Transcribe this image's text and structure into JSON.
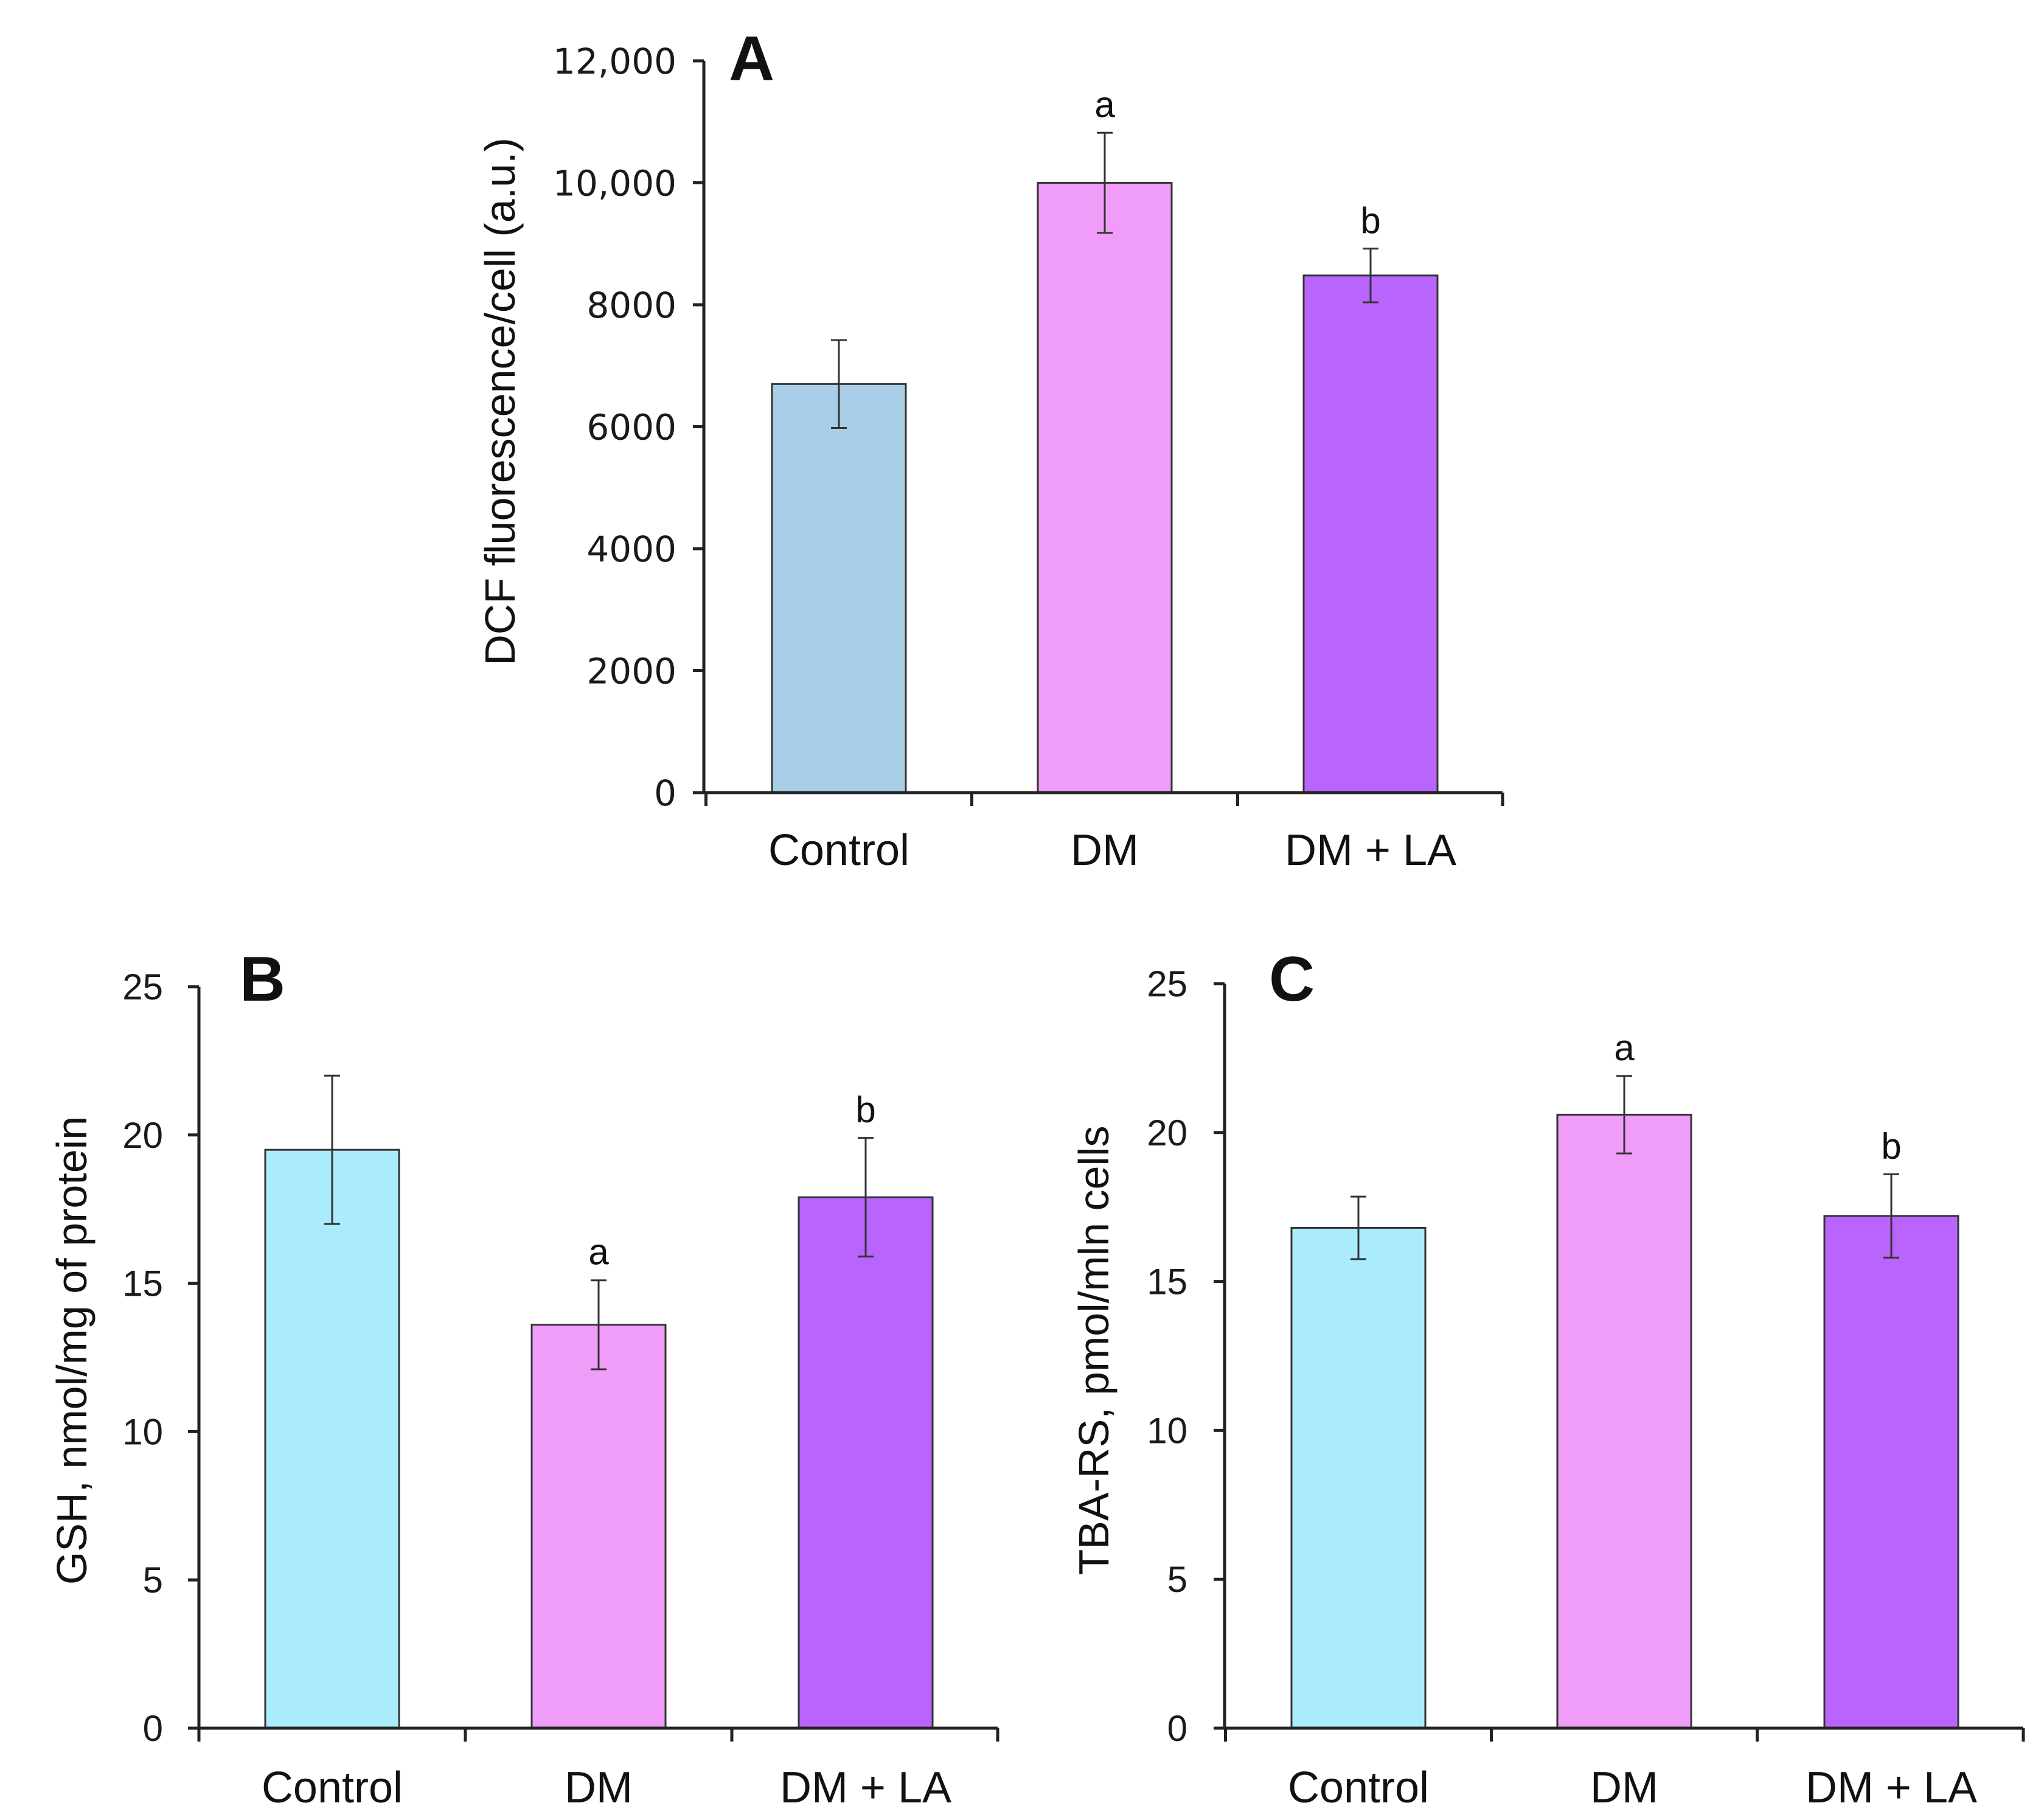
{
  "chart_data": [
    {
      "panel": "A",
      "type": "bar",
      "ylabel": "DCF fluorescence/cell (a.u.)",
      "xlabel": "",
      "ylim": [
        0,
        12000
      ],
      "yticks": [
        0,
        2000,
        4000,
        6000,
        8000,
        10000,
        12000
      ],
      "ytick_labels": [
        "0",
        "2000",
        "4000",
        "6000",
        "8000",
        "10,000",
        "12,000"
      ],
      "categories": [
        "Control",
        "DM",
        "DM + LA"
      ],
      "values": [
        6700,
        10000,
        8480
      ],
      "errors": [
        720,
        820,
        440
      ],
      "significance": [
        "",
        "a",
        "b"
      ],
      "colors": [
        "#a9cfe8",
        "#f09cf9",
        "#b964fc"
      ]
    },
    {
      "panel": "B",
      "type": "bar",
      "ylabel": "GSH, nmol/mg of protein",
      "xlabel": "",
      "ylim": [
        0,
        25
      ],
      "yticks": [
        0,
        5,
        10,
        15,
        20,
        25
      ],
      "ytick_labels": [
        "0",
        "5",
        "10",
        "15",
        "20",
        "25"
      ],
      "categories": [
        "Control",
        "DM",
        "DM + LA"
      ],
      "values": [
        19.5,
        13.6,
        17.9
      ],
      "errors": [
        2.5,
        1.5,
        2.0
      ],
      "significance": [
        "",
        "a",
        "b"
      ],
      "colors": [
        "#aaecfb",
        "#f09cf9",
        "#b964fc"
      ]
    },
    {
      "panel": "C",
      "type": "bar",
      "ylabel": "TBA-RS, pmol/mln cells",
      "xlabel": "",
      "ylim": [
        0,
        25
      ],
      "yticks": [
        0,
        5,
        10,
        15,
        20,
        25
      ],
      "ytick_labels": [
        "0",
        "5",
        "10",
        "15",
        "20",
        "25"
      ],
      "categories": [
        "Control",
        "DM",
        "DM + LA"
      ],
      "values": [
        16.8,
        20.6,
        17.2
      ],
      "errors": [
        1.05,
        1.3,
        1.4
      ],
      "significance": [
        "",
        "a",
        "b"
      ],
      "colors": [
        "#aaecfb",
        "#f09cf9",
        "#b964fc"
      ]
    }
  ]
}
